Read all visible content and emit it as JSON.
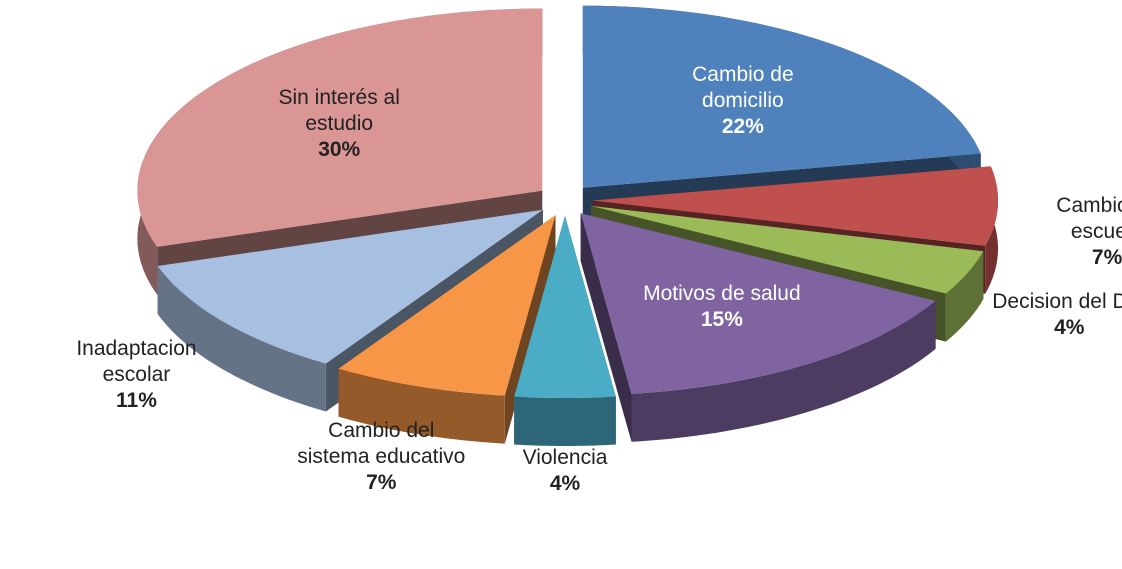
{
  "chart_data": {
    "type": "pie3d",
    "categories": [
      "Cambio de domicilio",
      "Cambio de escuela",
      "Decision del DIF",
      "Motivos de salud",
      "Violencia",
      "Cambio del sistema educativo",
      "Inadaptacion escolar",
      "Sin interés al estudio"
    ],
    "values": [
      22,
      7,
      4,
      15,
      4,
      7,
      11,
      30
    ],
    "value_labels": [
      "22%",
      "7%",
      "4%",
      "15%",
      "4%",
      "7%",
      "11%",
      "30%"
    ],
    "colors": [
      "#4f81bd",
      "#c0504d",
      "#9bbb59",
      "#8064a2",
      "#4bacc6",
      "#f79646",
      "#a7bfe0",
      "#d99694"
    ]
  }
}
